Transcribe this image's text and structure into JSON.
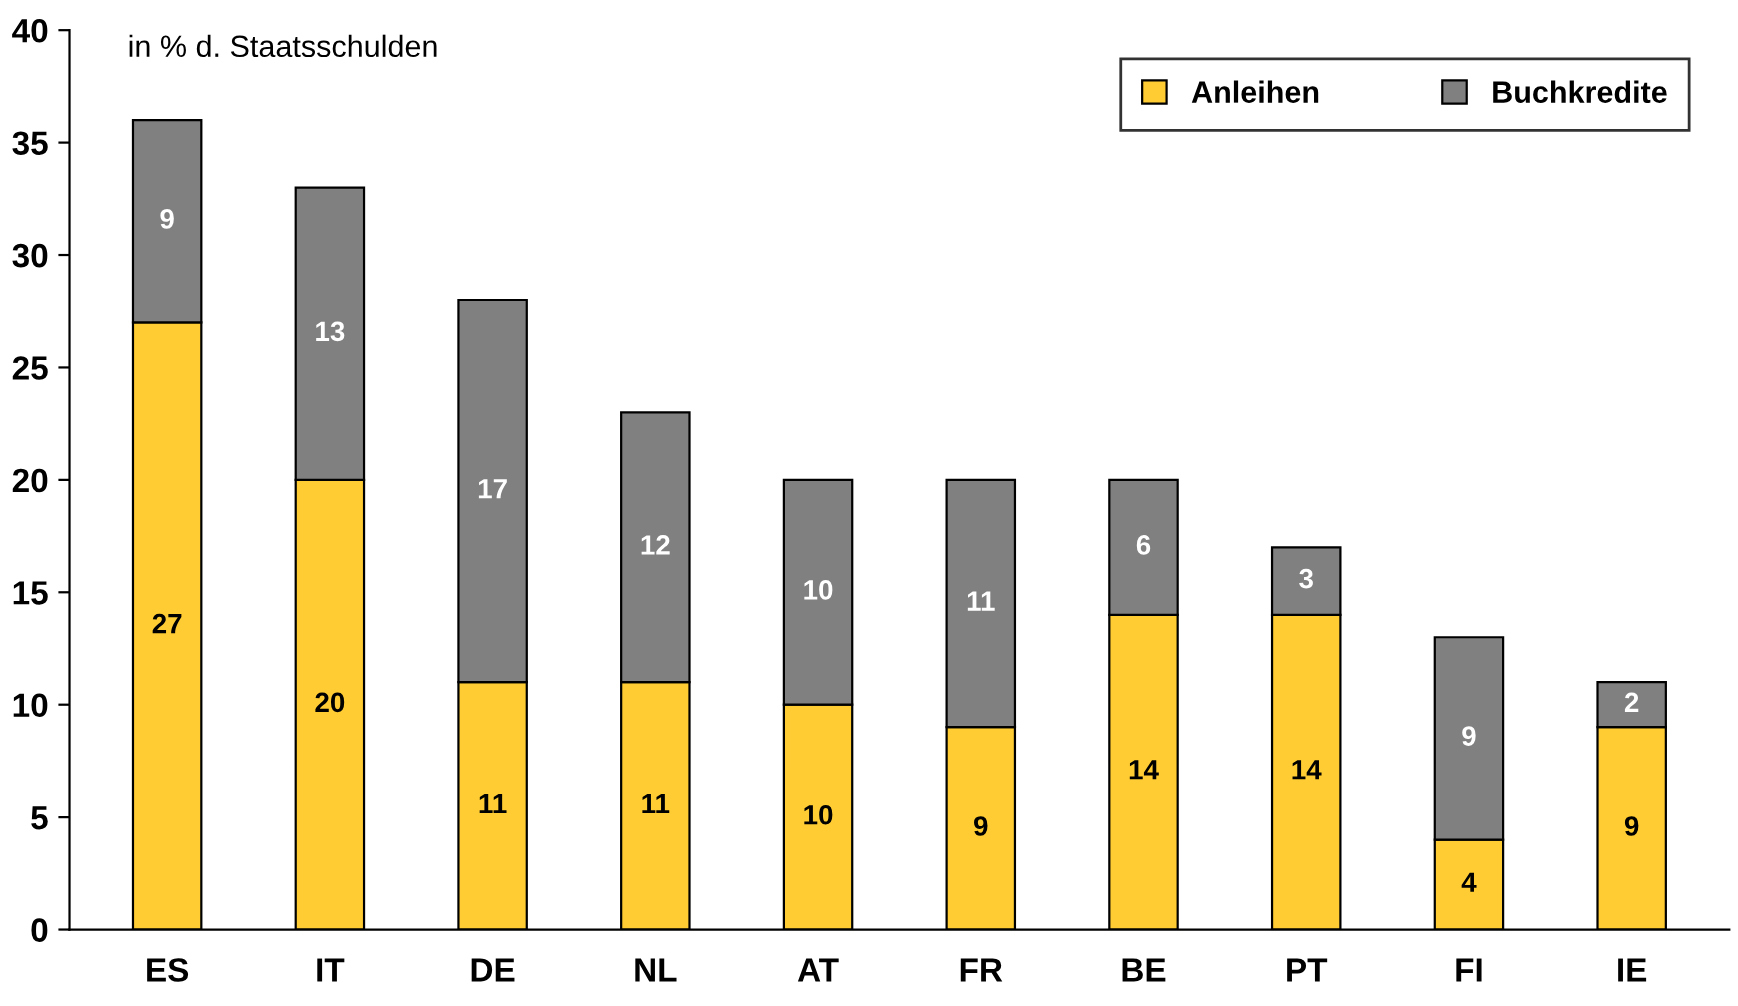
{
  "chart_data": {
    "type": "bar",
    "stacked": true,
    "categories": [
      "ES",
      "IT",
      "DE",
      "NL",
      "AT",
      "FR",
      "BE",
      "PT",
      "FI",
      "IE"
    ],
    "series": [
      {
        "name": "Anleihen",
        "color": "#ffcc33",
        "values": [
          27,
          20,
          11,
          11,
          10,
          9,
          14,
          14,
          4,
          9
        ]
      },
      {
        "name": "Buchkredite",
        "color": "#808080",
        "values": [
          9,
          13,
          17,
          12,
          10,
          11,
          6,
          3,
          9,
          2
        ]
      }
    ],
    "ylim": [
      0,
      40
    ],
    "yticks": [
      0,
      5,
      10,
      15,
      20,
      25,
      30,
      35,
      40
    ],
    "annotations": [
      "in % d. Staatsschulden"
    ],
    "data_labels": true,
    "legend": "top right",
    "grid": false
  }
}
